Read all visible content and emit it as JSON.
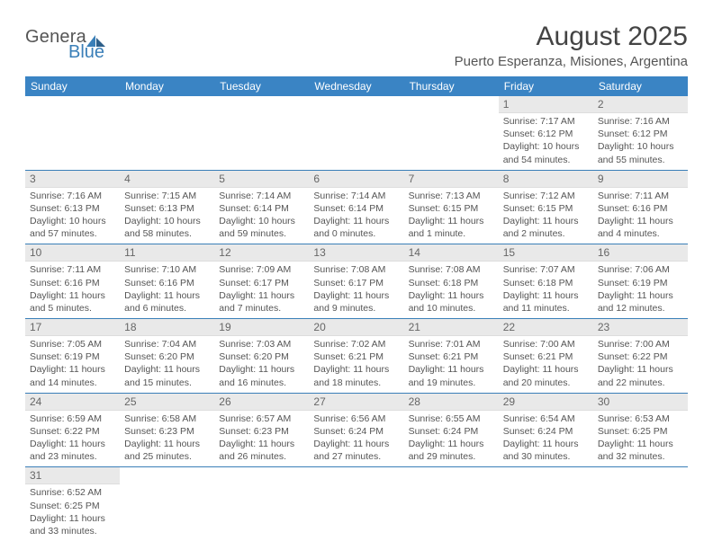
{
  "brand": {
    "part1": "Genera",
    "part2": "Blue"
  },
  "header": {
    "title": "August 2025",
    "location": "Puerto Esperanza, Misiones, Argentina"
  },
  "colors": {
    "header_bg": "#3a84c4",
    "accent": "#3a7fb8",
    "day_header_bg": "#e9e9e9",
    "text": "#555555",
    "page_bg": "#ffffff"
  },
  "calendar": {
    "day_labels": [
      "Sunday",
      "Monday",
      "Tuesday",
      "Wednesday",
      "Thursday",
      "Friday",
      "Saturday"
    ],
    "weeks": [
      [
        null,
        null,
        null,
        null,
        null,
        {
          "n": "1",
          "sunrise": "Sunrise: 7:17 AM",
          "sunset": "Sunset: 6:12 PM",
          "day1": "Daylight: 10 hours",
          "day2": "and 54 minutes."
        },
        {
          "n": "2",
          "sunrise": "Sunrise: 7:16 AM",
          "sunset": "Sunset: 6:12 PM",
          "day1": "Daylight: 10 hours",
          "day2": "and 55 minutes."
        }
      ],
      [
        {
          "n": "3",
          "sunrise": "Sunrise: 7:16 AM",
          "sunset": "Sunset: 6:13 PM",
          "day1": "Daylight: 10 hours",
          "day2": "and 57 minutes."
        },
        {
          "n": "4",
          "sunrise": "Sunrise: 7:15 AM",
          "sunset": "Sunset: 6:13 PM",
          "day1": "Daylight: 10 hours",
          "day2": "and 58 minutes."
        },
        {
          "n": "5",
          "sunrise": "Sunrise: 7:14 AM",
          "sunset": "Sunset: 6:14 PM",
          "day1": "Daylight: 10 hours",
          "day2": "and 59 minutes."
        },
        {
          "n": "6",
          "sunrise": "Sunrise: 7:14 AM",
          "sunset": "Sunset: 6:14 PM",
          "day1": "Daylight: 11 hours",
          "day2": "and 0 minutes."
        },
        {
          "n": "7",
          "sunrise": "Sunrise: 7:13 AM",
          "sunset": "Sunset: 6:15 PM",
          "day1": "Daylight: 11 hours",
          "day2": "and 1 minute."
        },
        {
          "n": "8",
          "sunrise": "Sunrise: 7:12 AM",
          "sunset": "Sunset: 6:15 PM",
          "day1": "Daylight: 11 hours",
          "day2": "and 2 minutes."
        },
        {
          "n": "9",
          "sunrise": "Sunrise: 7:11 AM",
          "sunset": "Sunset: 6:16 PM",
          "day1": "Daylight: 11 hours",
          "day2": "and 4 minutes."
        }
      ],
      [
        {
          "n": "10",
          "sunrise": "Sunrise: 7:11 AM",
          "sunset": "Sunset: 6:16 PM",
          "day1": "Daylight: 11 hours",
          "day2": "and 5 minutes."
        },
        {
          "n": "11",
          "sunrise": "Sunrise: 7:10 AM",
          "sunset": "Sunset: 6:16 PM",
          "day1": "Daylight: 11 hours",
          "day2": "and 6 minutes."
        },
        {
          "n": "12",
          "sunrise": "Sunrise: 7:09 AM",
          "sunset": "Sunset: 6:17 PM",
          "day1": "Daylight: 11 hours",
          "day2": "and 7 minutes."
        },
        {
          "n": "13",
          "sunrise": "Sunrise: 7:08 AM",
          "sunset": "Sunset: 6:17 PM",
          "day1": "Daylight: 11 hours",
          "day2": "and 9 minutes."
        },
        {
          "n": "14",
          "sunrise": "Sunrise: 7:08 AM",
          "sunset": "Sunset: 6:18 PM",
          "day1": "Daylight: 11 hours",
          "day2": "and 10 minutes."
        },
        {
          "n": "15",
          "sunrise": "Sunrise: 7:07 AM",
          "sunset": "Sunset: 6:18 PM",
          "day1": "Daylight: 11 hours",
          "day2": "and 11 minutes."
        },
        {
          "n": "16",
          "sunrise": "Sunrise: 7:06 AM",
          "sunset": "Sunset: 6:19 PM",
          "day1": "Daylight: 11 hours",
          "day2": "and 12 minutes."
        }
      ],
      [
        {
          "n": "17",
          "sunrise": "Sunrise: 7:05 AM",
          "sunset": "Sunset: 6:19 PM",
          "day1": "Daylight: 11 hours",
          "day2": "and 14 minutes."
        },
        {
          "n": "18",
          "sunrise": "Sunrise: 7:04 AM",
          "sunset": "Sunset: 6:20 PM",
          "day1": "Daylight: 11 hours",
          "day2": "and 15 minutes."
        },
        {
          "n": "19",
          "sunrise": "Sunrise: 7:03 AM",
          "sunset": "Sunset: 6:20 PM",
          "day1": "Daylight: 11 hours",
          "day2": "and 16 minutes."
        },
        {
          "n": "20",
          "sunrise": "Sunrise: 7:02 AM",
          "sunset": "Sunset: 6:21 PM",
          "day1": "Daylight: 11 hours",
          "day2": "and 18 minutes."
        },
        {
          "n": "21",
          "sunrise": "Sunrise: 7:01 AM",
          "sunset": "Sunset: 6:21 PM",
          "day1": "Daylight: 11 hours",
          "day2": "and 19 minutes."
        },
        {
          "n": "22",
          "sunrise": "Sunrise: 7:00 AM",
          "sunset": "Sunset: 6:21 PM",
          "day1": "Daylight: 11 hours",
          "day2": "and 20 minutes."
        },
        {
          "n": "23",
          "sunrise": "Sunrise: 7:00 AM",
          "sunset": "Sunset: 6:22 PM",
          "day1": "Daylight: 11 hours",
          "day2": "and 22 minutes."
        }
      ],
      [
        {
          "n": "24",
          "sunrise": "Sunrise: 6:59 AM",
          "sunset": "Sunset: 6:22 PM",
          "day1": "Daylight: 11 hours",
          "day2": "and 23 minutes."
        },
        {
          "n": "25",
          "sunrise": "Sunrise: 6:58 AM",
          "sunset": "Sunset: 6:23 PM",
          "day1": "Daylight: 11 hours",
          "day2": "and 25 minutes."
        },
        {
          "n": "26",
          "sunrise": "Sunrise: 6:57 AM",
          "sunset": "Sunset: 6:23 PM",
          "day1": "Daylight: 11 hours",
          "day2": "and 26 minutes."
        },
        {
          "n": "27",
          "sunrise": "Sunrise: 6:56 AM",
          "sunset": "Sunset: 6:24 PM",
          "day1": "Daylight: 11 hours",
          "day2": "and 27 minutes."
        },
        {
          "n": "28",
          "sunrise": "Sunrise: 6:55 AM",
          "sunset": "Sunset: 6:24 PM",
          "day1": "Daylight: 11 hours",
          "day2": "and 29 minutes."
        },
        {
          "n": "29",
          "sunrise": "Sunrise: 6:54 AM",
          "sunset": "Sunset: 6:24 PM",
          "day1": "Daylight: 11 hours",
          "day2": "and 30 minutes."
        },
        {
          "n": "30",
          "sunrise": "Sunrise: 6:53 AM",
          "sunset": "Sunset: 6:25 PM",
          "day1": "Daylight: 11 hours",
          "day2": "and 32 minutes."
        }
      ],
      [
        {
          "n": "31",
          "sunrise": "Sunrise: 6:52 AM",
          "sunset": "Sunset: 6:25 PM",
          "day1": "Daylight: 11 hours",
          "day2": "and 33 minutes."
        },
        null,
        null,
        null,
        null,
        null,
        null
      ]
    ]
  }
}
